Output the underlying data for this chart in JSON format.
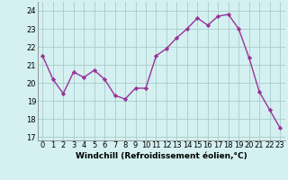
{
  "x": [
    0,
    1,
    2,
    3,
    4,
    5,
    6,
    7,
    8,
    9,
    10,
    11,
    12,
    13,
    14,
    15,
    16,
    17,
    18,
    19,
    20,
    21,
    22,
    23
  ],
  "y": [
    21.5,
    20.2,
    19.4,
    20.6,
    20.3,
    20.7,
    20.2,
    19.3,
    19.1,
    19.7,
    19.7,
    21.5,
    21.9,
    22.5,
    23.0,
    23.6,
    23.2,
    23.7,
    23.8,
    23.0,
    21.4,
    19.5,
    18.5,
    17.5
  ],
  "line_color": "#993399",
  "marker": "D",
  "marker_size": 2.2,
  "bg_color": "#d4f0f0",
  "grid_color": "#aacccc",
  "xlabel": "Windchill (Refroidissement éolien,°C)",
  "ylim": [
    16.8,
    24.5
  ],
  "yticks": [
    17,
    18,
    19,
    20,
    21,
    22,
    23,
    24
  ],
  "xticks": [
    0,
    1,
    2,
    3,
    4,
    5,
    6,
    7,
    8,
    9,
    10,
    11,
    12,
    13,
    14,
    15,
    16,
    17,
    18,
    19,
    20,
    21,
    22,
    23
  ],
  "xlabel_fontsize": 6.5,
  "tick_fontsize": 6.0,
  "line_width": 1.0
}
